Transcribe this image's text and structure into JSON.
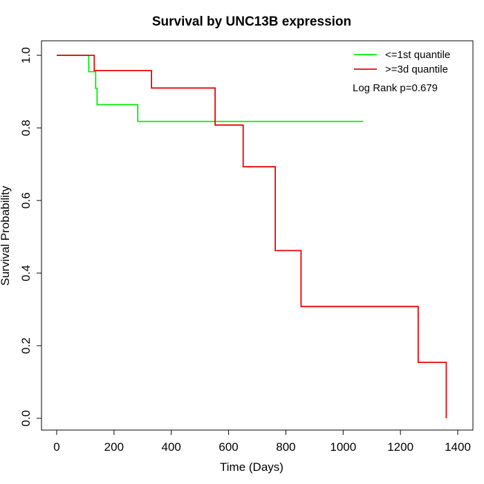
{
  "chart_data": {
    "type": "line",
    "title": "Survival by UNC13B expression",
    "xlabel": "Time (Days)",
    "ylabel": "Survival Probability",
    "xlim": [
      0,
      1400
    ],
    "ylim": [
      0,
      1.0
    ],
    "x_ticks": [
      "0",
      "200",
      "400",
      "600",
      "800",
      "1000",
      "1200",
      "1400"
    ],
    "y_ticks": [
      "0.0",
      "0.2",
      "0.4",
      "0.6",
      "0.8",
      "1.0"
    ],
    "grid": false,
    "legend_position": "top-right",
    "annotation": "Log Rank p=0.679",
    "series": [
      {
        "name": "<=1st quantile",
        "color": "#00ee00",
        "step_points": [
          [
            0,
            1.0
          ],
          [
            112,
            1.0
          ],
          [
            112,
            0.955
          ],
          [
            136,
            0.955
          ],
          [
            136,
            0.909
          ],
          [
            141,
            0.909
          ],
          [
            141,
            0.864
          ],
          [
            283,
            0.864
          ],
          [
            283,
            0.818
          ],
          [
            1070,
            0.818
          ]
        ]
      },
      {
        "name": ">=3d quantile",
        "color": "#ee0000",
        "step_points": [
          [
            0,
            1.0
          ],
          [
            131,
            1.0
          ],
          [
            131,
            0.958
          ],
          [
            331,
            0.958
          ],
          [
            331,
            0.91
          ],
          [
            553,
            0.91
          ],
          [
            553,
            0.808
          ],
          [
            651,
            0.808
          ],
          [
            651,
            0.693
          ],
          [
            763,
            0.693
          ],
          [
            763,
            0.462
          ],
          [
            853,
            0.462
          ],
          [
            853,
            0.308
          ],
          [
            1262,
            0.308
          ],
          [
            1262,
            0.154
          ],
          [
            1360,
            0.154
          ],
          [
            1360,
            0.0
          ]
        ]
      }
    ]
  }
}
